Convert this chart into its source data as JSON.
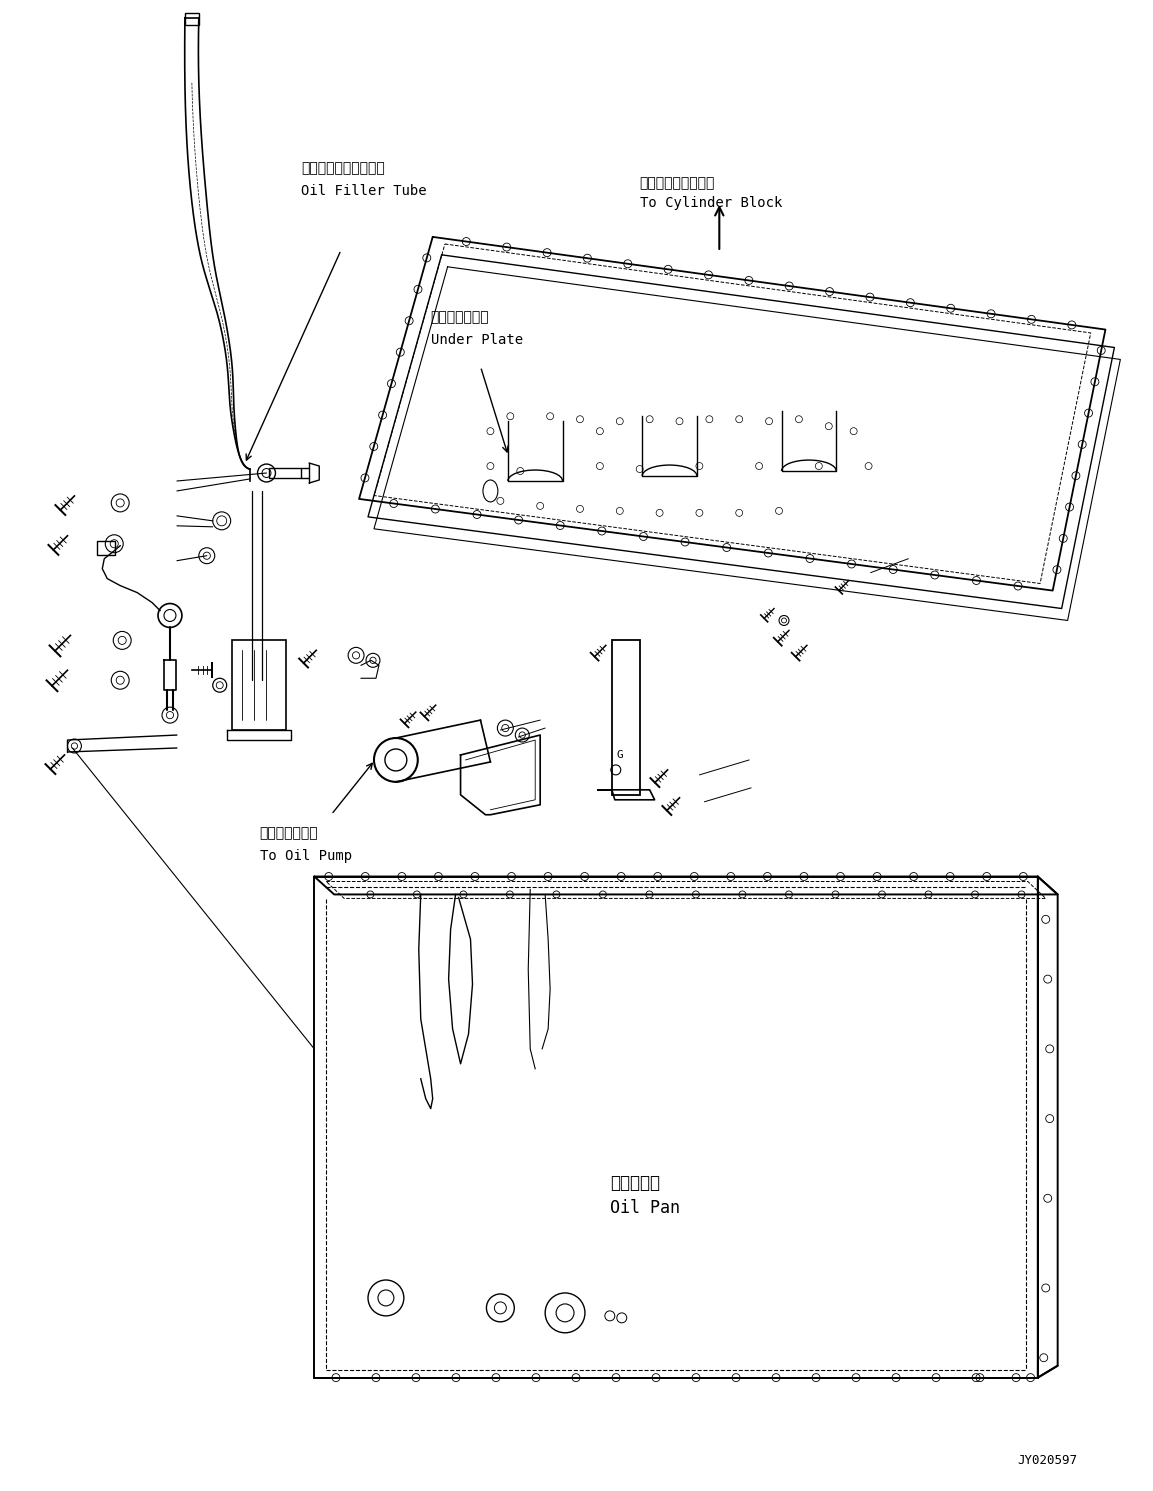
{
  "background_color": "#ffffff",
  "line_color": "#000000",
  "fig_width": 11.53,
  "fig_height": 14.91,
  "dpi": 100,
  "label_oil_filler_jp": "オイルフィラチューブ",
  "label_oil_filler_en": "Oil Filler Tube",
  "label_under_plate_jp": "アンダプレート",
  "label_under_plate_en": "Under Plate",
  "label_cylinder_jp": "シリンダブロックへ",
  "label_cylinder_en": "To Cylinder Block",
  "label_pump_jp": "オイルポンプへ",
  "label_pump_en": "To Oil Pump",
  "label_pan_jp": "オイルパン",
  "label_pan_en": "Oil Pan",
  "watermark": "JY020597"
}
